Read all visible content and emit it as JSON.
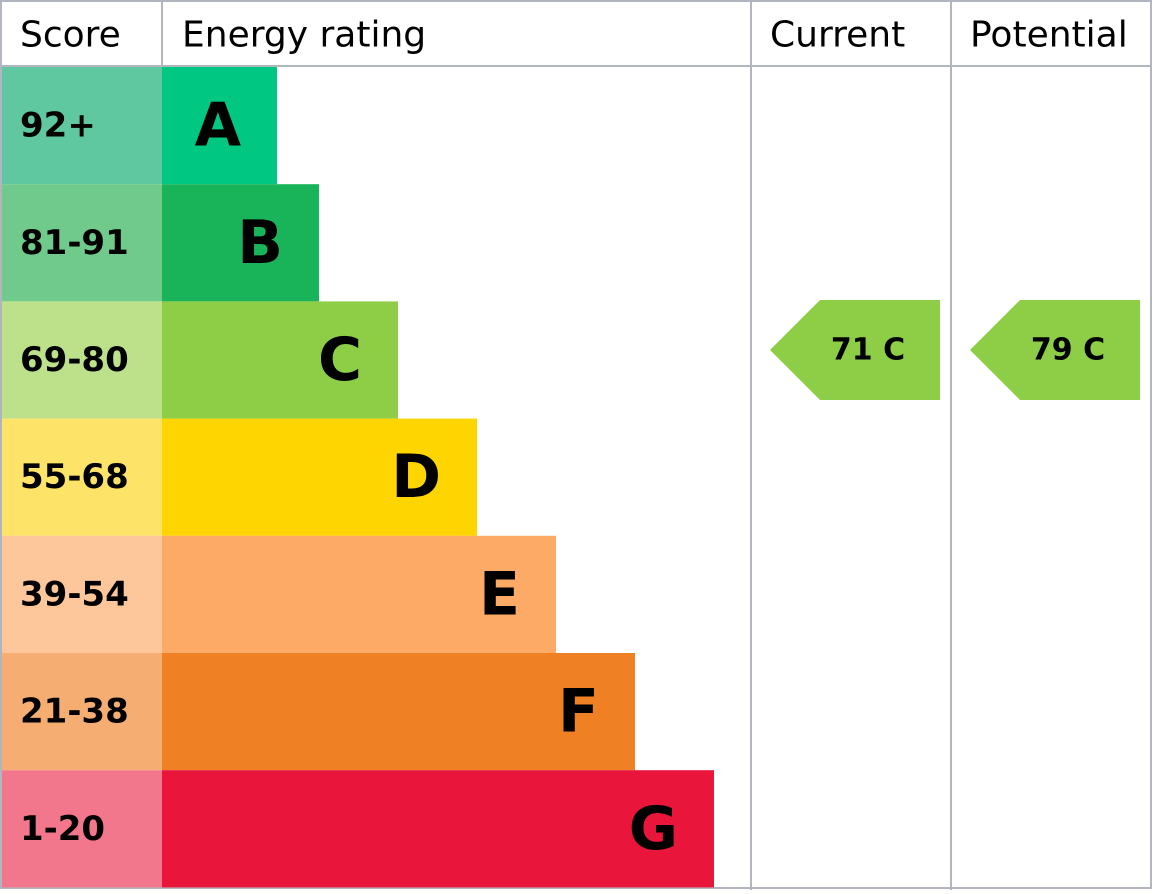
{
  "header": {
    "score": "Score",
    "rating": "Energy rating",
    "current": "Current",
    "potential": "Potential"
  },
  "bands": [
    {
      "score": "92+",
      "letter": "A",
      "score_color": "#5fc8a1",
      "color": "#00c781"
    },
    {
      "score": "81-91",
      "letter": "B",
      "score_color": "#6fca8b",
      "color": "#19b459"
    },
    {
      "score": "69-80",
      "letter": "C",
      "score_color": "#bde18a",
      "color": "#8dce46"
    },
    {
      "score": "55-68",
      "letter": "D",
      "score_color": "#fde469",
      "color": "#ffd500"
    },
    {
      "score": "39-54",
      "letter": "E",
      "score_color": "#fdc79b",
      "color": "#fcaa65"
    },
    {
      "score": "21-38",
      "letter": "F",
      "score_color": "#f5ad72",
      "color": "#ef8023"
    },
    {
      "score": "1-20",
      "letter": "G",
      "score_color": "#f2778d",
      "color": "#e9153b"
    }
  ],
  "current": {
    "label": "71 C",
    "color": "#8dce46"
  },
  "potential": {
    "label": "79 C",
    "color": "#8dce46"
  }
}
